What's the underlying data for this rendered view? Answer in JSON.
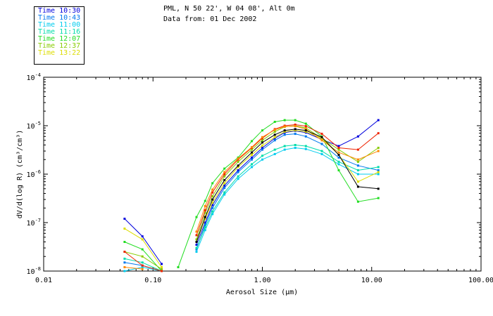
{
  "header": {
    "location": "PML, N 50 22', W 04 08', Alt 0m",
    "date_line": "Data from: 01 Dec 2002"
  },
  "legend": [
    {
      "label": "Time 10:30",
      "color": "#0000dd"
    },
    {
      "label": "Time 10:43",
      "color": "#0077ee"
    },
    {
      "label": "Time 11:00",
      "color": "#00ccee"
    },
    {
      "label": "Time 11:16",
      "color": "#00ddaa"
    },
    {
      "label": "Time 12:07",
      "color": "#22dd22"
    },
    {
      "label": "Time 12:37",
      "color": "#88cc00"
    },
    {
      "label": "Time 13:22",
      "color": "#dddd00"
    }
  ],
  "chart_data": {
    "type": "line",
    "xlabel": "Aerosol Size (μm)",
    "ylabel": "dV/d(log R) (cm³/cm³)",
    "x_scale": "log",
    "y_scale": "log",
    "xlim": [
      0.01,
      100
    ],
    "ylim": [
      1e-08,
      0.0001
    ],
    "x_ticks": [
      {
        "value": 0.01,
        "label": "0.01"
      },
      {
        "value": 0.1,
        "label": "0.10"
      },
      {
        "value": 1,
        "label": "1.00"
      },
      {
        "value": 10,
        "label": "10.00"
      },
      {
        "value": 100,
        "label": "100.00"
      }
    ],
    "y_ticks": [
      {
        "value": 1e-08,
        "mantissa": "10",
        "exp": "-8"
      },
      {
        "value": 1e-07,
        "mantissa": "10",
        "exp": "-7"
      },
      {
        "value": 1e-06,
        "mantissa": "10",
        "exp": "-6"
      },
      {
        "value": 1e-05,
        "mantissa": "10",
        "exp": "-5"
      },
      {
        "value": 0.0001,
        "mantissa": "10",
        "exp": "-4"
      }
    ],
    "series": [
      {
        "name": "Time 10:30",
        "color": "#0000dd",
        "segments": [
          [
            [
              0.055,
              1.2e-07
            ],
            [
              0.08,
              5.2e-08
            ],
            [
              0.12,
              1.4e-08
            ]
          ],
          [
            [
              0.25,
              3.5e-08
            ],
            [
              0.3,
              1e-07
            ],
            [
              0.35,
              2.3e-07
            ],
            [
              0.45,
              5.8e-07
            ],
            [
              0.6,
              1.2e-06
            ],
            [
              0.8,
              2.2e-06
            ],
            [
              1.0,
              3.5e-06
            ],
            [
              1.3,
              5.5e-06
            ],
            [
              1.6,
              7.2e-06
            ],
            [
              2.0,
              7.8e-06
            ],
            [
              2.5,
              7.2e-06
            ],
            [
              3.5,
              5.2e-06
            ],
            [
              5.0,
              3.8e-06
            ],
            [
              7.5,
              6e-06
            ],
            [
              11.5,
              1.3e-05
            ]
          ]
        ]
      },
      {
        "name": "Time 10:43",
        "color": "#0077ee",
        "segments": [
          [
            [
              0.055,
              1.5e-08
            ],
            [
              0.08,
              1.3e-08
            ],
            [
              0.12,
              1e-08
            ]
          ],
          [
            [
              0.25,
              2.8e-08
            ],
            [
              0.3,
              9e-08
            ],
            [
              0.35,
              2e-07
            ],
            [
              0.45,
              5.2e-07
            ],
            [
              0.6,
              1.1e-06
            ],
            [
              0.8,
              2e-06
            ],
            [
              1.0,
              3.2e-06
            ],
            [
              1.3,
              5e-06
            ],
            [
              1.6,
              6.5e-06
            ],
            [
              2.0,
              6.8e-06
            ],
            [
              2.5,
              6e-06
            ],
            [
              3.5,
              4.2e-06
            ],
            [
              5.0,
              2.2e-06
            ],
            [
              7.5,
              1.5e-06
            ],
            [
              11.5,
              1.2e-06
            ]
          ]
        ]
      },
      {
        "name": "Time 11:00",
        "color": "#00ccee",
        "segments": [
          [
            [
              0.055,
              1e-08
            ],
            [
              0.08,
              1.2e-08
            ],
            [
              0.12,
              1e-08
            ]
          ],
          [
            [
              0.25,
              2.5e-08
            ],
            [
              0.3,
              7e-08
            ],
            [
              0.35,
              1.5e-07
            ],
            [
              0.45,
              3.8e-07
            ],
            [
              0.6,
              8e-07
            ],
            [
              0.8,
              1.4e-06
            ],
            [
              1.0,
              2e-06
            ],
            [
              1.3,
              2.6e-06
            ],
            [
              1.6,
              3.2e-06
            ],
            [
              2.0,
              3.5e-06
            ],
            [
              2.5,
              3.3e-06
            ],
            [
              3.5,
              2.6e-06
            ],
            [
              5.0,
              1.6e-06
            ],
            [
              7.5,
              1e-06
            ],
            [
              11.5,
              1e-06
            ]
          ]
        ]
      },
      {
        "name": "Time 11:16",
        "color": "#00ddaa",
        "segments": [
          [
            [
              0.055,
              1.8e-08
            ],
            [
              0.08,
              1.5e-08
            ],
            [
              0.12,
              1e-08
            ]
          ],
          [
            [
              0.25,
              3e-08
            ],
            [
              0.3,
              8e-08
            ],
            [
              0.35,
              1.7e-07
            ],
            [
              0.45,
              4.2e-07
            ],
            [
              0.6,
              9e-07
            ],
            [
              0.8,
              1.6e-06
            ],
            [
              1.0,
              2.4e-06
            ],
            [
              1.3,
              3.2e-06
            ],
            [
              1.6,
              3.8e-06
            ],
            [
              2.0,
              4e-06
            ],
            [
              2.5,
              3.8e-06
            ],
            [
              3.5,
              3e-06
            ],
            [
              5.0,
              1.8e-06
            ],
            [
              7.5,
              1.2e-06
            ],
            [
              11.5,
              1.4e-06
            ]
          ]
        ]
      },
      {
        "name": "Time 12:07",
        "color": "#22dd22",
        "segments": [
          [
            [
              0.055,
              4e-08
            ],
            [
              0.08,
              2.8e-08
            ],
            [
              0.12,
              1e-08
            ]
          ],
          [
            [
              0.17,
              1.2e-08
            ],
            [
              0.25,
              1.3e-07
            ],
            [
              0.3,
              2.8e-07
            ],
            [
              0.35,
              6.5e-07
            ],
            [
              0.45,
              1.3e-06
            ],
            [
              0.6,
              2.2e-06
            ],
            [
              0.8,
              4.8e-06
            ],
            [
              1.0,
              8e-06
            ],
            [
              1.3,
              1.2e-05
            ],
            [
              1.6,
              1.3e-05
            ],
            [
              2.0,
              1.3e-05
            ],
            [
              2.5,
              1.1e-05
            ],
            [
              3.5,
              6e-06
            ],
            [
              5.0,
              1.2e-06
            ],
            [
              7.5,
              2.7e-07
            ],
            [
              11.5,
              3.2e-07
            ]
          ]
        ]
      },
      {
        "name": "Time 12:37",
        "color": "#88cc00",
        "segments": [
          [
            [
              0.055,
              2.5e-08
            ],
            [
              0.08,
              2e-08
            ],
            [
              0.12,
              1.1e-08
            ]
          ],
          [
            [
              0.25,
              4.5e-08
            ],
            [
              0.3,
              1.6e-07
            ],
            [
              0.35,
              3.5e-07
            ],
            [
              0.45,
              9e-07
            ],
            [
              0.6,
              1.8e-06
            ],
            [
              0.8,
              3.2e-06
            ],
            [
              1.0,
              5e-06
            ],
            [
              1.3,
              7.5e-06
            ],
            [
              1.6,
              9.5e-06
            ],
            [
              2.0,
              1e-05
            ],
            [
              2.5,
              9e-06
            ],
            [
              3.5,
              5.5e-06
            ],
            [
              5.0,
              3.2e-06
            ],
            [
              7.5,
              1.8e-06
            ],
            [
              11.5,
              3.5e-06
            ]
          ]
        ]
      },
      {
        "name": "Time 13:22",
        "color": "#dddd00",
        "segments": [
          [
            [
              0.055,
              7.5e-08
            ],
            [
              0.08,
              4.5e-08
            ],
            [
              0.12,
              1.2e-08
            ]
          ],
          [
            [
              0.25,
              4e-08
            ],
            [
              0.3,
              1.2e-07
            ],
            [
              0.35,
              2.6e-07
            ],
            [
              0.45,
              6.5e-07
            ],
            [
              0.6,
              1.4e-06
            ],
            [
              0.8,
              2.5e-06
            ],
            [
              1.0,
              3.9e-06
            ],
            [
              1.3,
              5.8e-06
            ],
            [
              1.6,
              7.5e-06
            ],
            [
              2.0,
              8e-06
            ],
            [
              2.5,
              7.5e-06
            ],
            [
              3.5,
              5.5e-06
            ],
            [
              5.0,
              2.5e-06
            ],
            [
              7.5,
              7e-07
            ],
            [
              11.5,
              1.1e-06
            ]
          ]
        ]
      },
      {
        "name": "",
        "color": "#ee2200",
        "segments": [
          [
            [
              0.055,
              2.5e-08
            ],
            [
              0.08,
              1.3e-08
            ],
            [
              0.12,
              1e-08
            ]
          ],
          [
            [
              0.25,
              5.5e-08
            ],
            [
              0.3,
              1.8e-07
            ],
            [
              0.35,
              4.2e-07
            ],
            [
              0.45,
              1e-06
            ],
            [
              0.6,
              2e-06
            ],
            [
              0.8,
              3.5e-06
            ],
            [
              1.0,
              5.5e-06
            ],
            [
              1.3,
              8.5e-06
            ],
            [
              1.6,
              1e-05
            ],
            [
              2.0,
              1.05e-05
            ],
            [
              2.5,
              9.8e-06
            ],
            [
              3.5,
              6.8e-06
            ],
            [
              5.0,
              3.5e-06
            ],
            [
              7.5,
              3.2e-06
            ],
            [
              11.5,
              7e-06
            ]
          ]
        ]
      },
      {
        "name": "",
        "color": "#ff8800",
        "segments": [
          [
            [
              0.055,
              1.2e-08
            ],
            [
              0.08,
              1.1e-08
            ]
          ],
          [
            [
              0.25,
              6.5e-08
            ],
            [
              0.3,
              2.2e-07
            ],
            [
              0.35,
              4.8e-07
            ],
            [
              0.45,
              1.1e-06
            ],
            [
              0.6,
              2.1e-06
            ],
            [
              0.8,
              3.6e-06
            ],
            [
              1.0,
              5.8e-06
            ],
            [
              1.3,
              8.2e-06
            ],
            [
              1.6,
              9.6e-06
            ],
            [
              2.0,
              9.8e-06
            ],
            [
              2.5,
              8.5e-06
            ],
            [
              3.5,
              5e-06
            ],
            [
              5.0,
              2.8e-06
            ],
            [
              7.5,
              2e-06
            ],
            [
              11.5,
              3e-06
            ]
          ]
        ]
      },
      {
        "name": "",
        "color": "#000000",
        "segments": [
          [
            [
              0.25,
              4e-08
            ],
            [
              0.3,
              1.3e-07
            ],
            [
              0.35,
              3e-07
            ],
            [
              0.45,
              7.5e-07
            ],
            [
              0.6,
              1.5e-06
            ],
            [
              0.8,
              2.8e-06
            ],
            [
              1.0,
              4.5e-06
            ],
            [
              1.3,
              6.5e-06
            ],
            [
              1.6,
              8e-06
            ],
            [
              2.0,
              8.5e-06
            ],
            [
              2.5,
              8e-06
            ],
            [
              3.5,
              5.8e-06
            ],
            [
              5.0,
              2.5e-06
            ],
            [
              7.5,
              5.5e-07
            ],
            [
              11.5,
              5e-07
            ]
          ]
        ]
      }
    ]
  }
}
